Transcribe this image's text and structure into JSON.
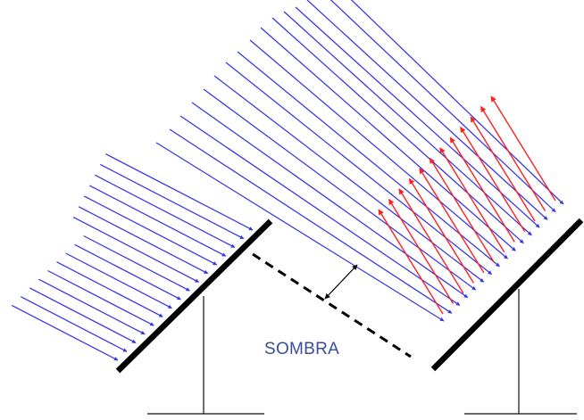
{
  "label": "SOMBRA",
  "colors": {
    "incoming_ray": "#3535e6",
    "reflected_ray": "#ff1f1f",
    "panel": "#000000",
    "support": "#111111",
    "label": "#3b4c9e"
  }
}
